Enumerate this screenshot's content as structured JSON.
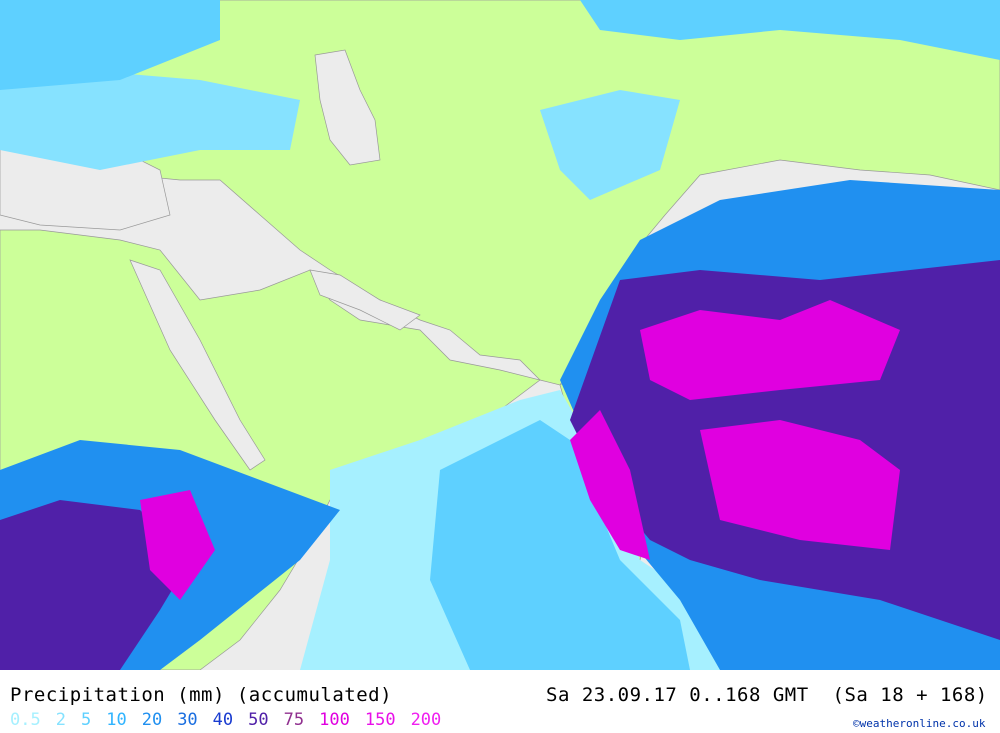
{
  "map": {
    "sea_color": "#ececec",
    "land_color": "#ccff99",
    "border_color": "#999999"
  },
  "legend": {
    "title": "Precipitation (mm) (accumulated)",
    "date_range": "Sa 23.09.17 0..168 GMT  (Sa 18 + 168)",
    "credit": "©weatheronline.co.uk",
    "scale": [
      {
        "label": "0.5",
        "color": "#a6f0ff"
      },
      {
        "label": "2",
        "color": "#86e2ff"
      },
      {
        "label": "5",
        "color": "#5ed0ff"
      },
      {
        "label": "10",
        "color": "#30b4ff"
      },
      {
        "label": "20",
        "color": "#2090f0"
      },
      {
        "label": "30",
        "color": "#1a6ee0"
      },
      {
        "label": "40",
        "color": "#1a3cd0"
      },
      {
        "label": "50",
        "color": "#5020a8"
      },
      {
        "label": "75",
        "color": "#90308f"
      },
      {
        "label": "100",
        "color": "#e000e0"
      },
      {
        "label": "150",
        "color": "#e810e8"
      },
      {
        "label": "200",
        "color": "#f020f0"
      }
    ]
  }
}
